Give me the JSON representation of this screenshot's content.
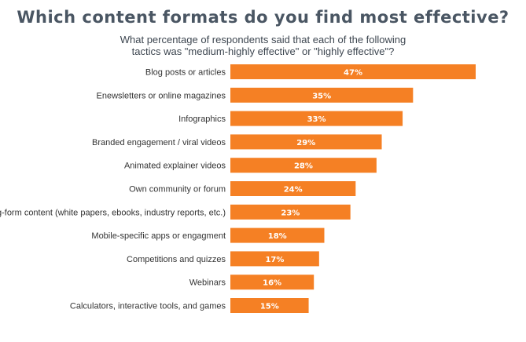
{
  "colors": {
    "bar": "#f58024",
    "title": "#4a5663",
    "label": "#333333",
    "value_text": "#ffffff"
  },
  "chart_data": {
    "type": "bar",
    "orientation": "horizontal",
    "title": "Which content formats do you find most effective?",
    "subtitle": [
      "What percentage of respondents said that each of the following",
      "tactics was \"medium-highly effective\" or \"highly effective\"?"
    ],
    "categories": [
      "Blog posts or articles",
      "Enewsletters or online magazines",
      "Infographics",
      "Branded engagement / viral videos",
      "Animated explainer videos",
      "Own community or forum",
      "Long-form content (white papers, ebooks, industry reports, etc.)",
      "Mobile-specific apps or engagment",
      "Competitions and quizzes",
      "Webinars",
      "Calculators, interactive tools, and games"
    ],
    "values": [
      47,
      35,
      33,
      29,
      28,
      24,
      23,
      18,
      17,
      16,
      15
    ],
    "value_labels": [
      "47%",
      "35%",
      "33%",
      "29%",
      "28%",
      "24%",
      "23%",
      "18%",
      "17%",
      "16%",
      "15%"
    ],
    "xlim": [
      0,
      47
    ],
    "xlabel": "",
    "ylabel": "",
    "grid": false,
    "legend": "none"
  }
}
